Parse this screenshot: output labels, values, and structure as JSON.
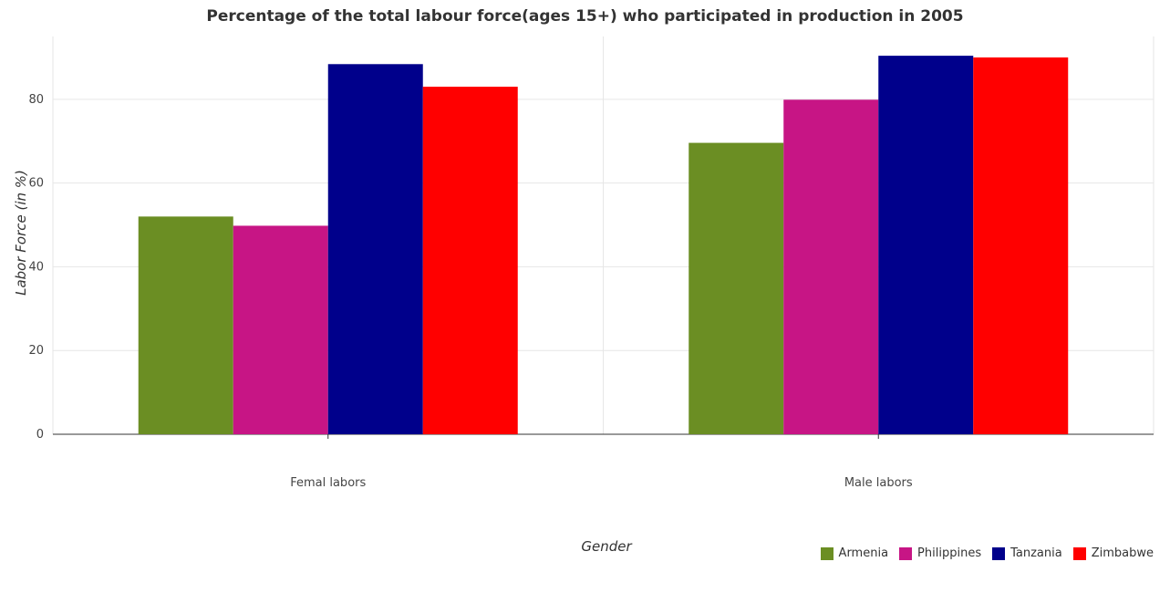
{
  "chart_data": {
    "type": "bar",
    "title": "Percentage of the total labour force(ages 15+) who participated in production in 2005",
    "xlabel": "Gender",
    "ylabel": "Labor Force (in %)",
    "categories": [
      "Femal labors",
      "Male labors"
    ],
    "ylim": [
      0,
      95
    ],
    "yticks": [
      0,
      20,
      40,
      60,
      80
    ],
    "grid": true,
    "legend_position": "bottom-right",
    "series": [
      {
        "name": "Armenia",
        "color": "#6b8e23",
        "values": [
          52.0,
          69.6
        ]
      },
      {
        "name": "Philippines",
        "color": "#c71585",
        "values": [
          49.8,
          79.9
        ]
      },
      {
        "name": "Tanzania",
        "color": "#00008b",
        "values": [
          88.4,
          90.4
        ]
      },
      {
        "name": "Zimbabwe",
        "color": "#ff0000",
        "values": [
          83.0,
          90.0
        ]
      }
    ]
  }
}
